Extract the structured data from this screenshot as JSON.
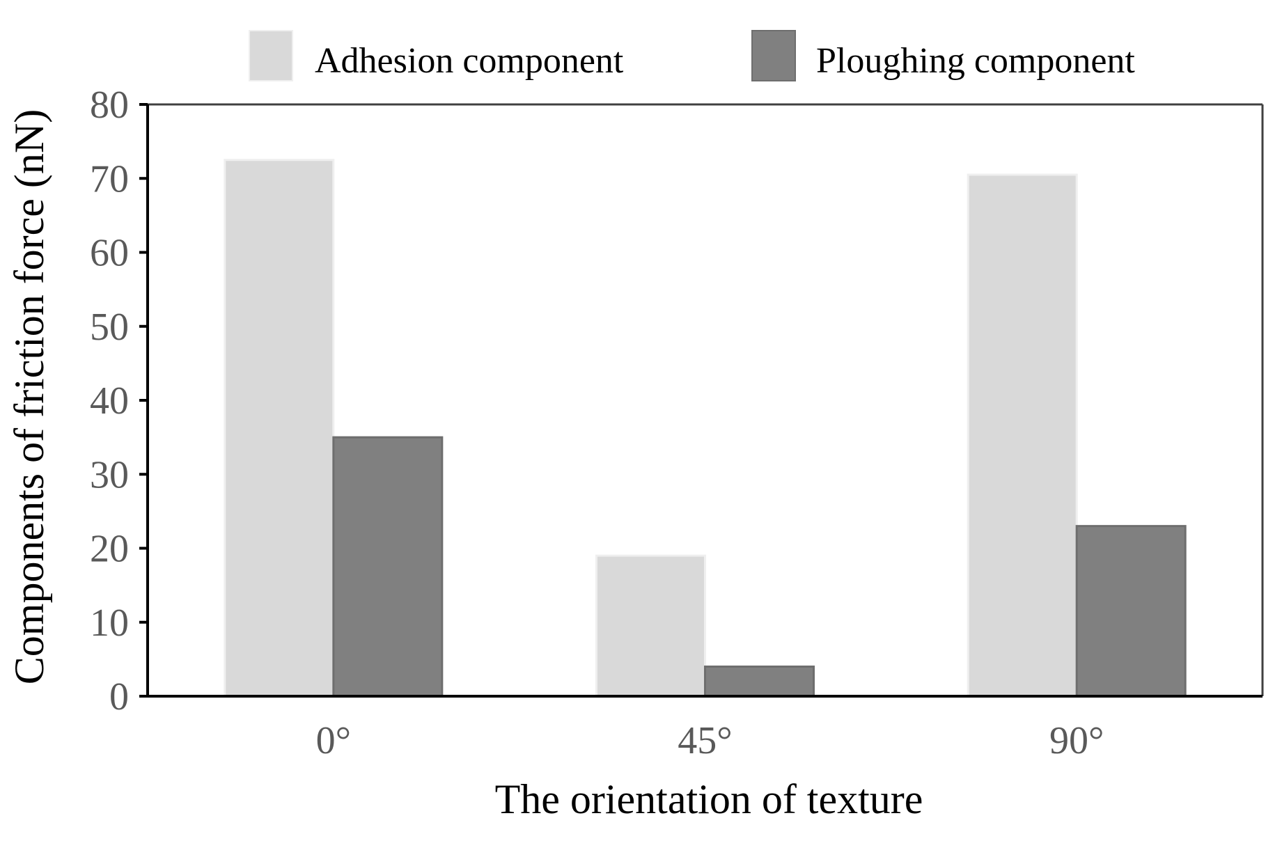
{
  "chart_data": {
    "type": "bar",
    "title": "",
    "xlabel": "The orientation of texture",
    "ylabel": "Components of friction force (nN)",
    "categories": [
      "0°",
      "45°",
      "90°"
    ],
    "series": [
      {
        "name": "Adhesion component",
        "values": [
          72.5,
          19,
          70.5
        ],
        "color": "#d9d9d9"
      },
      {
        "name": "Ploughing component",
        "values": [
          35,
          4,
          23
        ],
        "color": "#808080"
      }
    ],
    "ylim": [
      0,
      80
    ],
    "yticks": [
      "0",
      "10",
      "20",
      "30",
      "40",
      "50",
      "60",
      "70",
      "80"
    ],
    "grid": false,
    "legend_position": "top"
  }
}
